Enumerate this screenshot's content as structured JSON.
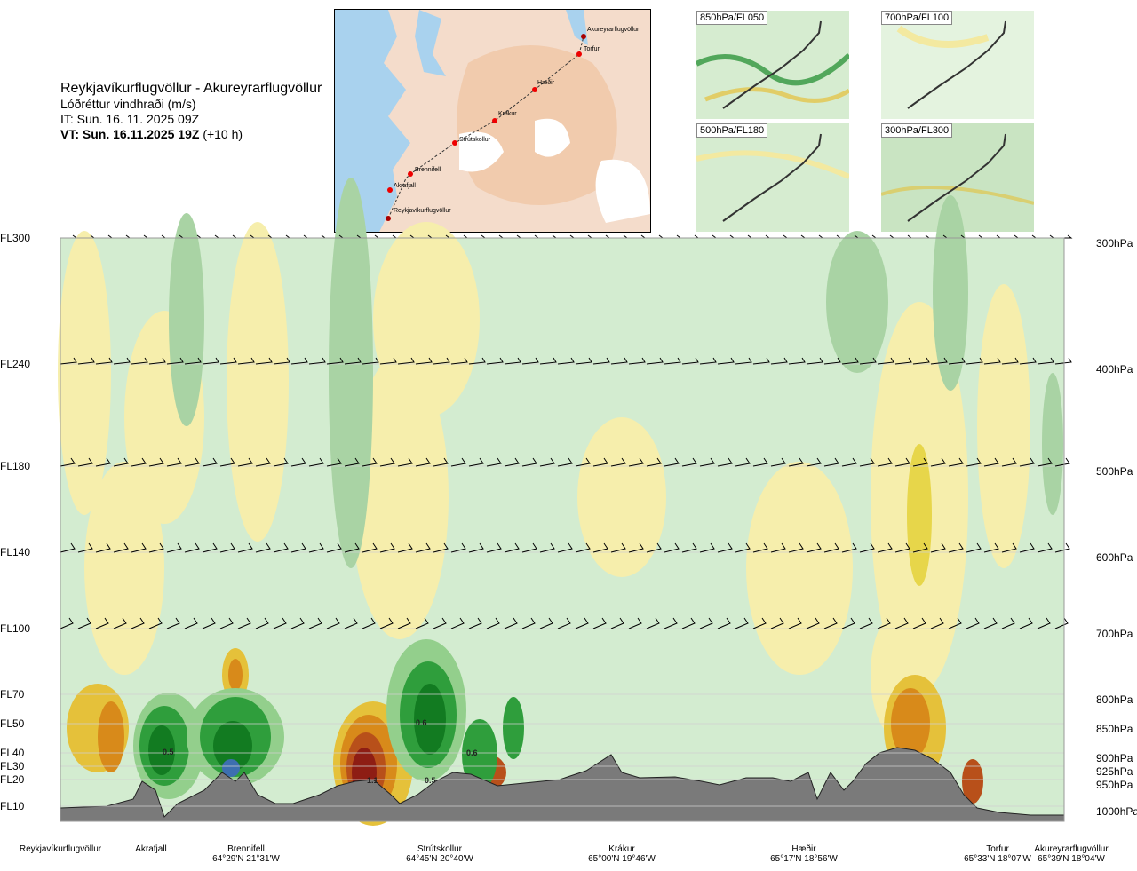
{
  "title": {
    "route": "Reykjavíkurflugvöllur - Akureyrarflugvöllur",
    "variable": "Lóðréttur vindhraði (m/s)",
    "issue_time": "IT: Sun. 16. 11. 2025 09Z",
    "valid_time_bold": "VT: Sun. 16.11.2025 19Z",
    "valid_offset": "(+10 h)"
  },
  "map": {
    "points": [
      {
        "name": "Akureyrarflugvöllur"
      },
      {
        "name": "Torfur"
      },
      {
        "name": "Hæðir"
      },
      {
        "name": "Krákur"
      },
      {
        "name": "Strútskollur"
      },
      {
        "name": "Brennifell"
      },
      {
        "name": "Akrafjall"
      },
      {
        "name": "Reykjavíkurflugvöllur"
      }
    ]
  },
  "mini_maps": [
    {
      "label": "850hPa/FL050"
    },
    {
      "label": "700hPa/FL100"
    },
    {
      "label": "500hPa/FL180"
    },
    {
      "label": "300hPa/FL300"
    }
  ],
  "chart_data": {
    "type": "heatmap",
    "title": "Reykjavíkurflugvöllur - Akureyrarflugvöllur",
    "variable": "Lóðréttur vindhraði (m/s)",
    "levels": [
      {
        "fl": "FL300",
        "hpa": "300hPa"
      },
      {
        "fl": "FL240",
        "hpa": "400hPa"
      },
      {
        "fl": "FL180",
        "hpa": "500hPa"
      },
      {
        "fl": "FL140",
        "hpa": "600hPa"
      },
      {
        "fl": "FL100",
        "hpa": "700hPa"
      },
      {
        "fl": "FL70",
        "hpa": "800hPa"
      },
      {
        "fl": "FL50",
        "hpa": "850hPa"
      },
      {
        "fl": "FL40",
        "hpa": "900hPa"
      },
      {
        "fl": "FL30",
        "hpa": "925hPa"
      },
      {
        "fl": "FL20",
        "hpa": "950hPa"
      },
      {
        "fl": "FL10",
        "hpa": "1000hPa"
      }
    ],
    "x_locations": [
      {
        "name": "Reykjavíkurflugvöllur",
        "coord": ""
      },
      {
        "name": "Akrafjall",
        "coord": ""
      },
      {
        "name": "Brennifell",
        "coord": "64°29'N 21°31'W"
      },
      {
        "name": "Strútskollur",
        "coord": "64°45'N 20°40'W"
      },
      {
        "name": "Krákur",
        "coord": "65°00'N 19°46'W"
      },
      {
        "name": "Hæðir",
        "coord": "65°17'N 18°56'W"
      },
      {
        "name": "Torfur",
        "coord": "65°33'N 18°07'W"
      },
      {
        "name": "Akureyrarflugvöllur",
        "coord": "65°39'N 18°04'W"
      }
    ],
    "annotations": [
      "0.5",
      "0.6",
      "0.6",
      "1.1",
      "0.5"
    ],
    "terrain": "grey"
  }
}
